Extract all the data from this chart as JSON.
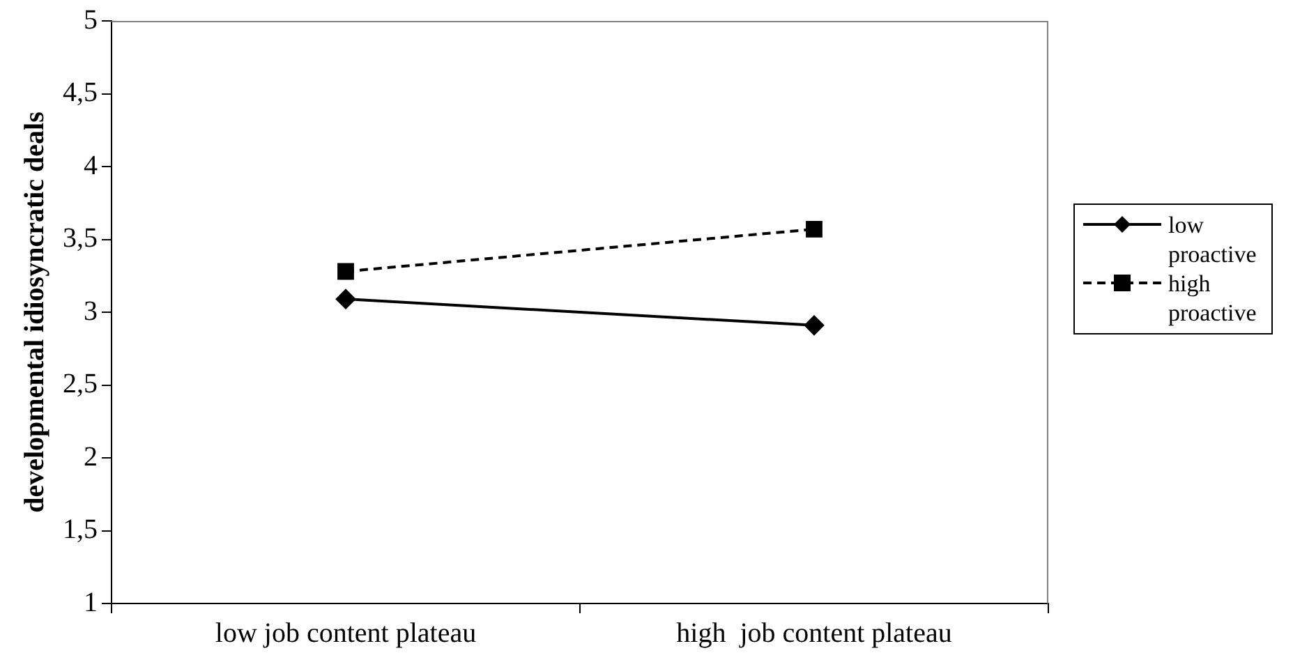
{
  "chart_data": {
    "type": "line",
    "ylabel": "developmental idiosyncratic deals",
    "categories": [
      "low job content plateau",
      "high  job content plateau"
    ],
    "series": [
      {
        "name": "low proactive",
        "color": "#000000",
        "values": [
          3.09,
          2.91
        ],
        "marker": "diamond",
        "line_style": "solid"
      },
      {
        "name": "high proactive",
        "color": "#000000",
        "values": [
          3.28,
          3.57
        ],
        "marker": "square",
        "line_style": "dashed"
      }
    ],
    "ylim": [
      1,
      5
    ],
    "yticks": [
      1,
      {
        "value": 1.5,
        "label": "1,5"
      },
      2,
      {
        "value": 2.5,
        "label": "2,5"
      },
      3,
      {
        "value": 3.5,
        "label": "3,5"
      },
      4,
      {
        "value": 4.5,
        "label": "4,5"
      },
      5
    ],
    "grid": false,
    "legend": "right"
  }
}
